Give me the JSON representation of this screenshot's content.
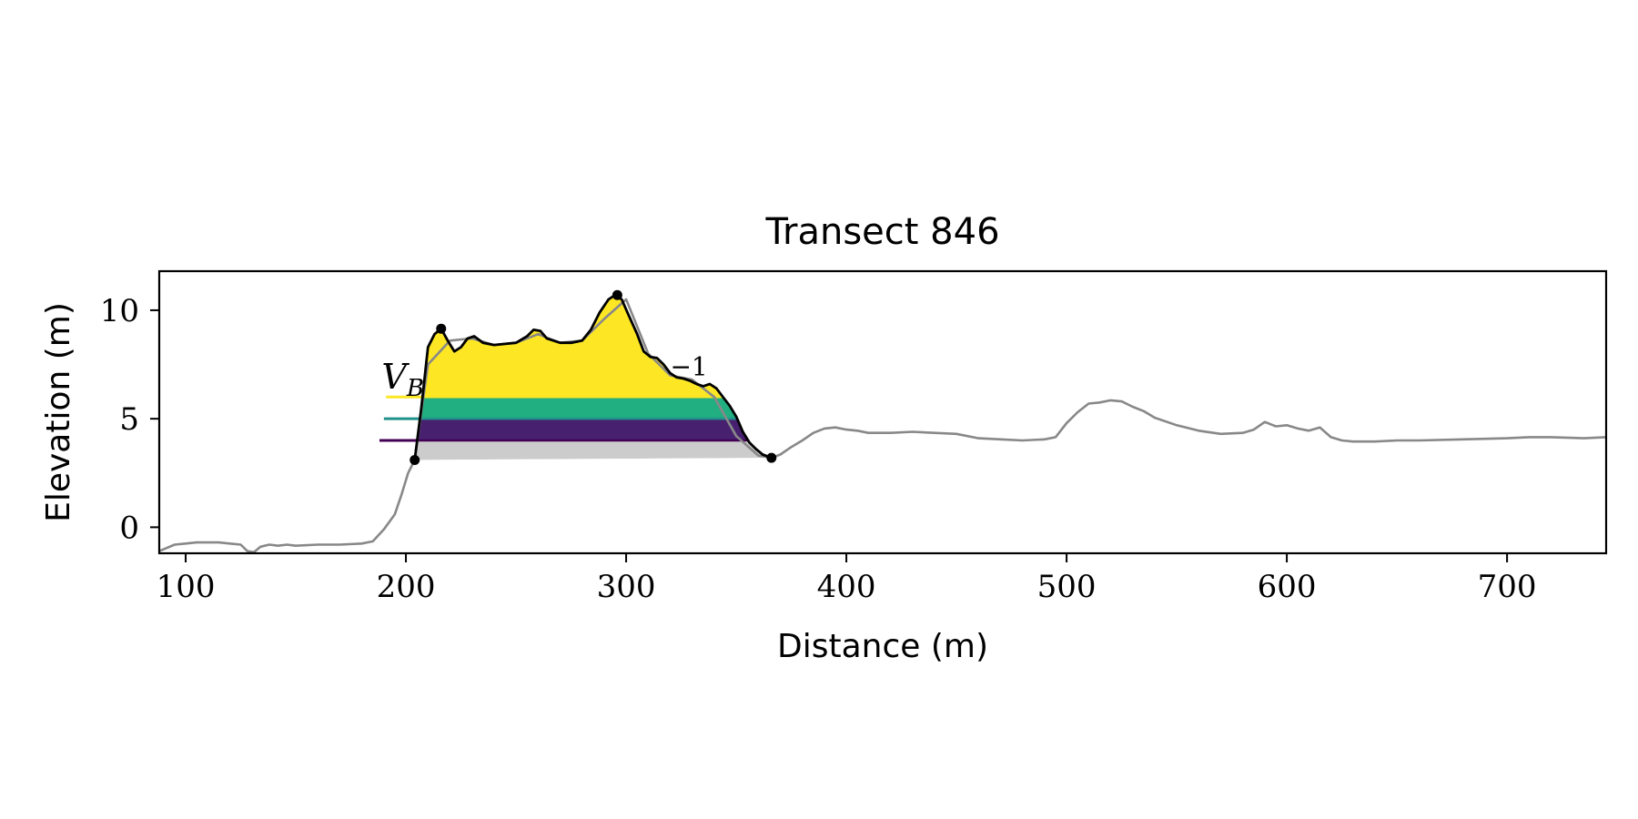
{
  "chart_data": {
    "type": "line",
    "title": "Transect 846",
    "xlabel": "Distance (m)",
    "ylabel": "Elevation (m)",
    "xlim": [
      88,
      745
    ],
    "ylim": [
      -1.2,
      11.8
    ],
    "xticks": [
      100,
      200,
      300,
      400,
      500,
      600,
      700
    ],
    "yticks": [
      0,
      5,
      10
    ],
    "grid": false,
    "legend": "none",
    "colors": {
      "profile": "#888888",
      "dune": "#000000",
      "base_fill": "#cccccc",
      "layer_low": "#440154",
      "layer_mid": "#21918c",
      "layer_high": "#fde725"
    },
    "profile": {
      "x": [
        88,
        95,
        100,
        105,
        110,
        115,
        120,
        125,
        128,
        131,
        134,
        138,
        142,
        146,
        150,
        160,
        170,
        180,
        185,
        190,
        195,
        198,
        201,
        204,
        210,
        220,
        230,
        240,
        250,
        260,
        270,
        280,
        290,
        300,
        310,
        320,
        330,
        340,
        350,
        360,
        366,
        370,
        375,
        380,
        385,
        390,
        395,
        400,
        405,
        410,
        420,
        430,
        440,
        450,
        460,
        470,
        480,
        490,
        495,
        500,
        505,
        510,
        515,
        520,
        525,
        530,
        535,
        540,
        550,
        560,
        570,
        580,
        585,
        590,
        595,
        600,
        605,
        610,
        615,
        620,
        625,
        630,
        640,
        650,
        660,
        680,
        700,
        710,
        720,
        735,
        745
      ],
      "y": [
        -1.1,
        -0.8,
        -0.75,
        -0.7,
        -0.7,
        -0.7,
        -0.75,
        -0.8,
        -1.1,
        -1.15,
        -0.9,
        -0.8,
        -0.85,
        -0.8,
        -0.85,
        -0.8,
        -0.8,
        -0.75,
        -0.65,
        -0.1,
        0.6,
        1.5,
        2.5,
        3.1,
        7.5,
        8.6,
        8.7,
        8.4,
        8.5,
        8.9,
        8.5,
        8.6,
        9.6,
        10.5,
        8.0,
        7.0,
        6.8,
        6.0,
        4.2,
        3.3,
        3.2,
        3.35,
        3.7,
        4.0,
        4.35,
        4.55,
        4.6,
        4.5,
        4.45,
        4.35,
        4.35,
        4.4,
        4.35,
        4.3,
        4.1,
        4.05,
        4.0,
        4.05,
        4.15,
        4.8,
        5.3,
        5.7,
        5.75,
        5.85,
        5.8,
        5.55,
        5.35,
        5.05,
        4.7,
        4.45,
        4.3,
        4.35,
        4.5,
        4.85,
        4.65,
        4.7,
        4.55,
        4.45,
        4.6,
        4.15,
        4.0,
        3.95,
        3.95,
        4.0,
        4.0,
        4.05,
        4.1,
        4.15,
        4.15,
        4.1,
        4.15
      ]
    },
    "dune": {
      "x": [
        204,
        207,
        210,
        213,
        216,
        219,
        222,
        225,
        228,
        231,
        235,
        240,
        245,
        250,
        255,
        258,
        261,
        264,
        267,
        270,
        275,
        280,
        284,
        288,
        292,
        295,
        298,
        301,
        305,
        308,
        311,
        314,
        317,
        320,
        323,
        326,
        329,
        332,
        335,
        338,
        341,
        344,
        347,
        350,
        353,
        356,
        359,
        362,
        366
      ],
      "y": [
        3.1,
        5.5,
        8.3,
        8.9,
        9.15,
        8.6,
        8.1,
        8.3,
        8.7,
        8.8,
        8.5,
        8.4,
        8.45,
        8.5,
        8.8,
        9.1,
        9.05,
        8.7,
        8.6,
        8.5,
        8.5,
        8.6,
        9.1,
        9.9,
        10.5,
        10.7,
        10.5,
        9.8,
        8.9,
        8.1,
        7.85,
        7.8,
        7.5,
        7.1,
        6.9,
        6.85,
        6.75,
        6.6,
        6.5,
        6.6,
        6.4,
        6.0,
        5.6,
        5.1,
        4.4,
        3.9,
        3.6,
        3.35,
        3.2
      ]
    },
    "markers": [
      {
        "x": 204,
        "y": 3.1
      },
      {
        "x": 216,
        "y": 9.15
      },
      {
        "x": 296,
        "y": 10.7
      },
      {
        "x": 366,
        "y": 3.2
      }
    ],
    "levels": [
      {
        "y": 4.0,
        "x_start": 188,
        "color": "#440154"
      },
      {
        "y": 5.0,
        "x_start": 190,
        "color": "#21918c"
      },
      {
        "y": 6.0,
        "x_start": 191,
        "color": "#fde725"
      }
    ],
    "fills": [
      {
        "y_low": 6.0,
        "y_high": 11.0,
        "color": "#fde725"
      },
      {
        "y_low": 5.0,
        "y_high": 6.0,
        "color": "#21ae81"
      },
      {
        "y_low": 4.0,
        "y_high": 5.0,
        "color": "#472070"
      }
    ],
    "annotations": [
      {
        "text": "V",
        "subscript": "B",
        "x": 189,
        "y": 6.4
      },
      {
        "text": "−1",
        "x": 320,
        "y": 7.0
      }
    ]
  }
}
